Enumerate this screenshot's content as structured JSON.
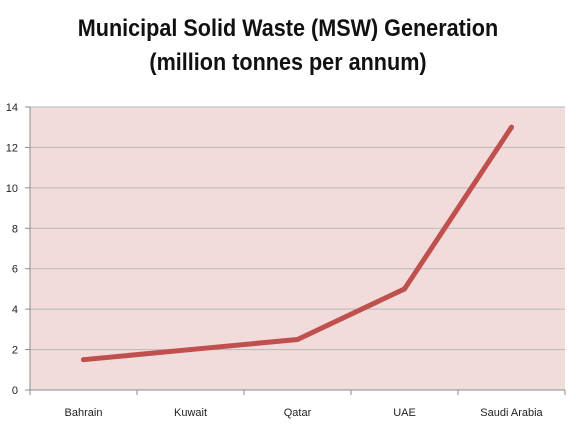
{
  "chart_data": {
    "type": "line",
    "title_line1": "Municipal Solid Waste (MSW) Generation",
    "title_line2": "(million tonnes per annum)",
    "xlabel": "",
    "ylabel": "",
    "categories": [
      "Bahrain",
      "Kuwait",
      "Qatar",
      "UAE",
      "Saudi Arabia"
    ],
    "series": [
      {
        "values": [
          1.5,
          2.0,
          2.5,
          5.0,
          13.0
        ]
      }
    ],
    "ylim": [
      0,
      14
    ],
    "yticks": [
      0,
      2,
      4,
      6,
      8,
      10,
      12,
      14
    ],
    "grid": true,
    "legend": "none",
    "colors": {
      "line": "#c0504d",
      "plot_background": "#f2dcdb",
      "grid": "#b8b8b8",
      "axis": "#8c8c8c"
    }
  }
}
